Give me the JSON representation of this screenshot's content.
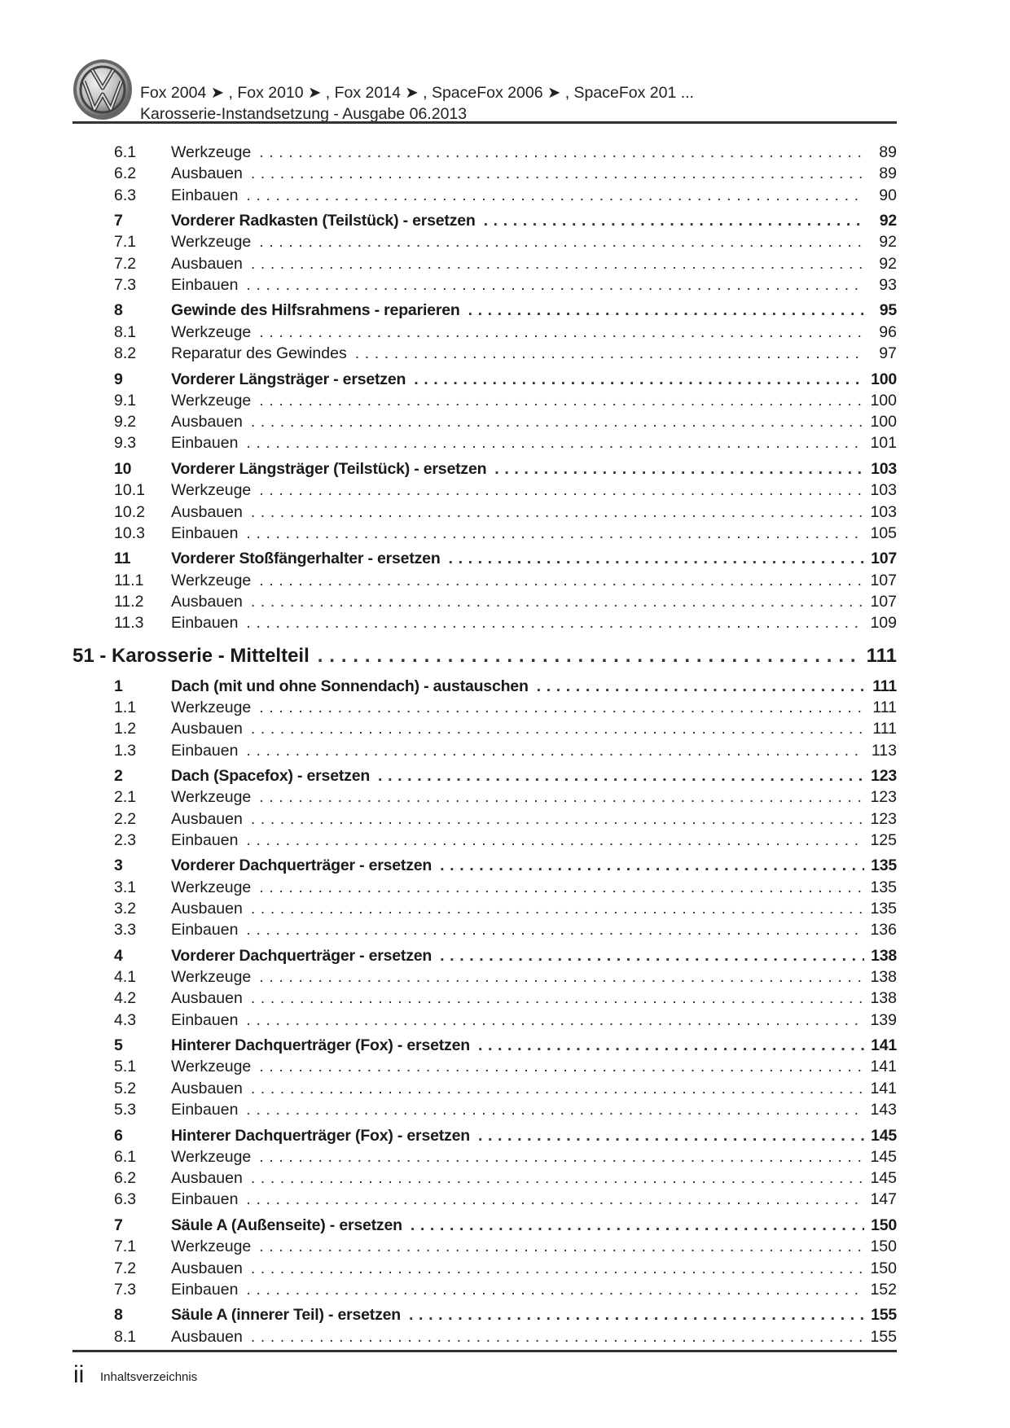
{
  "header": {
    "logo": "vw-logo",
    "models": "Fox 2004 ➤ , Fox 2010 ➤ , Fox 2014 ➤ , SpaceFox 2006 ➤ , SpaceFox 201 ...",
    "subtitle": "Karosserie-Instandsetzung - Ausgabe 06.2013"
  },
  "toc": [
    {
      "type": "sub",
      "num": "6.1",
      "title": "Werkzeuge",
      "page": "89"
    },
    {
      "type": "sub",
      "num": "6.2",
      "title": "Ausbauen",
      "page": "89"
    },
    {
      "type": "sub",
      "num": "6.3",
      "title": "Einbauen",
      "page": "90"
    },
    {
      "type": "sec",
      "num": "7",
      "title": "Vorderer Radkasten (Teilstück) - ersetzen",
      "page": "92"
    },
    {
      "type": "sub",
      "num": "7.1",
      "title": "Werkzeuge",
      "page": "92"
    },
    {
      "type": "sub",
      "num": "7.2",
      "title": "Ausbauen",
      "page": "92"
    },
    {
      "type": "sub",
      "num": "7.3",
      "title": "Einbauen",
      "page": "93"
    },
    {
      "type": "sec",
      "num": "8",
      "title": "Gewinde des Hilfsrahmens - reparieren",
      "page": "95"
    },
    {
      "type": "sub",
      "num": "8.1",
      "title": "Werkzeuge",
      "page": "96"
    },
    {
      "type": "sub",
      "num": "8.2",
      "title": "Reparatur des Gewindes",
      "page": "97"
    },
    {
      "type": "sec",
      "num": "9",
      "title": "Vorderer Längsträger - ersetzen",
      "page": "100"
    },
    {
      "type": "sub",
      "num": "9.1",
      "title": "Werkzeuge",
      "page": "100"
    },
    {
      "type": "sub",
      "num": "9.2",
      "title": "Ausbauen",
      "page": "100"
    },
    {
      "type": "sub",
      "num": "9.3",
      "title": "Einbauen",
      "page": "101"
    },
    {
      "type": "sec",
      "num": "10",
      "title": "Vorderer Längsträger (Teilstück) - ersetzen",
      "page": "103"
    },
    {
      "type": "sub",
      "num": "10.1",
      "title": "Werkzeuge",
      "page": "103"
    },
    {
      "type": "sub",
      "num": "10.2",
      "title": "Ausbauen",
      "page": "103"
    },
    {
      "type": "sub",
      "num": "10.3",
      "title": "Einbauen",
      "page": "105"
    },
    {
      "type": "sec",
      "num": "11",
      "title": "Vorderer Stoßfängerhalter - ersetzen",
      "page": "107"
    },
    {
      "type": "sub",
      "num": "11.1",
      "title": "Werkzeuge",
      "page": "107"
    },
    {
      "type": "sub",
      "num": "11.2",
      "title": "Ausbauen",
      "page": "107"
    },
    {
      "type": "sub",
      "num": "11.3",
      "title": "Einbauen",
      "page": "109"
    },
    {
      "type": "chap",
      "num": "",
      "title": "51 - Karosserie - Mittelteil",
      "page": "111"
    },
    {
      "type": "sec",
      "num": "1",
      "title": "Dach (mit und ohne Sonnendach) - austauschen",
      "page": "111"
    },
    {
      "type": "sub",
      "num": "1.1",
      "title": "Werkzeuge",
      "page": "111"
    },
    {
      "type": "sub",
      "num": "1.2",
      "title": "Ausbauen",
      "page": "111"
    },
    {
      "type": "sub",
      "num": "1.3",
      "title": "Einbauen",
      "page": "113"
    },
    {
      "type": "sec",
      "num": "2",
      "title": "Dach (Spacefox) - ersetzen",
      "page": "123"
    },
    {
      "type": "sub",
      "num": "2.1",
      "title": "Werkzeuge",
      "page": "123"
    },
    {
      "type": "sub",
      "num": "2.2",
      "title": "Ausbauen",
      "page": "123"
    },
    {
      "type": "sub",
      "num": "2.3",
      "title": "Einbauen",
      "page": "125"
    },
    {
      "type": "sec",
      "num": "3",
      "title": "Vorderer Dachquerträger - ersetzen",
      "page": "135"
    },
    {
      "type": "sub",
      "num": "3.1",
      "title": "Werkzeuge",
      "page": "135"
    },
    {
      "type": "sub",
      "num": "3.2",
      "title": "Ausbauen",
      "page": "135"
    },
    {
      "type": "sub",
      "num": "3.3",
      "title": "Einbauen",
      "page": "136"
    },
    {
      "type": "sec",
      "num": "4",
      "title": "Vorderer Dachquerträger - ersetzen",
      "page": "138"
    },
    {
      "type": "sub",
      "num": "4.1",
      "title": "Werkzeuge",
      "page": "138"
    },
    {
      "type": "sub",
      "num": "4.2",
      "title": "Ausbauen",
      "page": "138"
    },
    {
      "type": "sub",
      "num": "4.3",
      "title": "Einbauen",
      "page": "139"
    },
    {
      "type": "sec",
      "num": "5",
      "title": "Hinterer Dachquerträger (Fox) - ersetzen",
      "page": "141"
    },
    {
      "type": "sub",
      "num": "5.1",
      "title": "Werkzeuge",
      "page": "141"
    },
    {
      "type": "sub",
      "num": "5.2",
      "title": "Ausbauen",
      "page": "141"
    },
    {
      "type": "sub",
      "num": "5.3",
      "title": "Einbauen",
      "page": "143"
    },
    {
      "type": "sec",
      "num": "6",
      "title": "Hinterer Dachquerträger (Fox) - ersetzen",
      "page": "145"
    },
    {
      "type": "sub",
      "num": "6.1",
      "title": "Werkzeuge",
      "page": "145"
    },
    {
      "type": "sub",
      "num": "6.2",
      "title": "Ausbauen",
      "page": "145"
    },
    {
      "type": "sub",
      "num": "6.3",
      "title": "Einbauen",
      "page": "147"
    },
    {
      "type": "sec",
      "num": "7",
      "title": "Säule A (Außenseite) - ersetzen",
      "page": "150"
    },
    {
      "type": "sub",
      "num": "7.1",
      "title": "Werkzeuge",
      "page": "150"
    },
    {
      "type": "sub",
      "num": "7.2",
      "title": "Ausbauen",
      "page": "150"
    },
    {
      "type": "sub",
      "num": "7.3",
      "title": "Einbauen",
      "page": "152"
    },
    {
      "type": "sec",
      "num": "8",
      "title": "Säule A (innerer Teil) - ersetzen",
      "page": "155"
    },
    {
      "type": "sub",
      "num": "8.1",
      "title": "Ausbauen",
      "page": "155"
    }
  ],
  "footer": {
    "page_number": "ii",
    "label": "Inhaltsverzeichnis"
  }
}
